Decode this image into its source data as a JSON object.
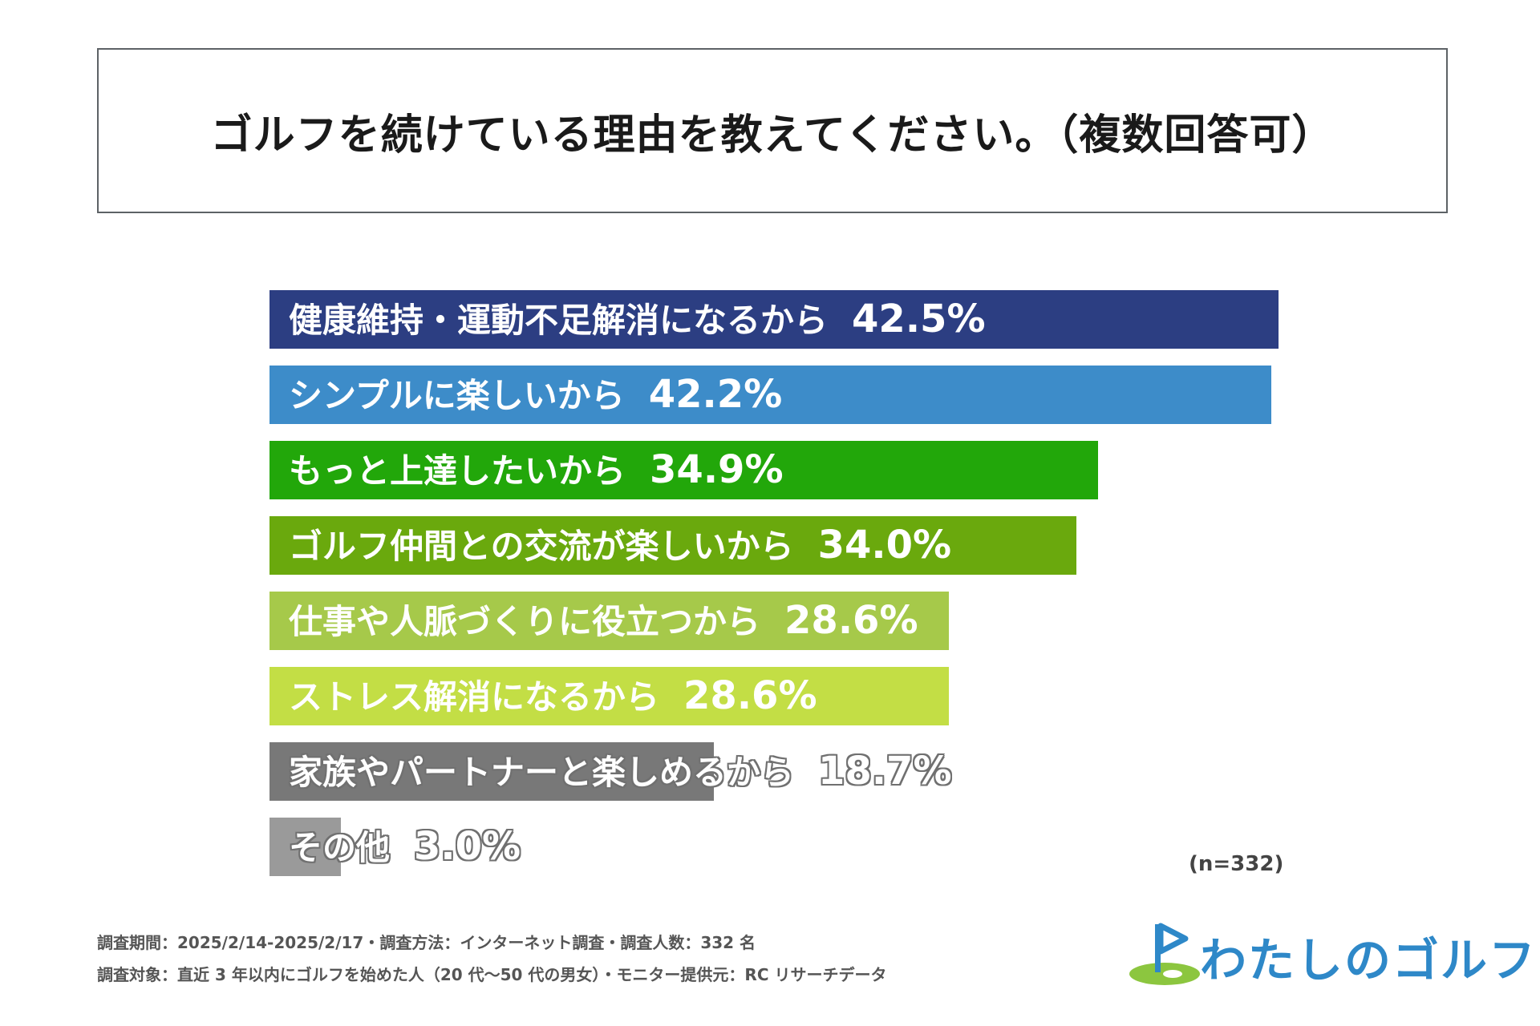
{
  "title": "ゴルフを続けている理由を教えてください。（複数回答可）",
  "chart_data": {
    "type": "bar",
    "orientation": "horizontal",
    "title": "ゴルフを続けている理由を教えてください。（複数回答可）",
    "unit": "%",
    "categories": [
      "健康維持・運動不足解消になるから",
      "シンプルに楽しいから",
      "もっと上達したいから",
      "ゴルフ仲間との交流が楽しいから",
      "仕事や人脈づくりに役立つから",
      "ストレス解消になるから",
      "家族やパートナーと楽しめるから",
      "その他"
    ],
    "values": [
      42.5,
      42.2,
      34.9,
      34.0,
      28.6,
      28.6,
      18.7,
      3.0
    ],
    "value_labels": [
      "42.5%",
      "42.2%",
      "34.9%",
      "34.0%",
      "28.6%",
      "28.6%",
      "18.7%",
      "3.0%"
    ],
    "colors": [
      "#2c3e82",
      "#3d8cc9",
      "#22a70a",
      "#6aa90d",
      "#a6c94a",
      "#c3de45",
      "#787878",
      "#9a9a9a"
    ],
    "xlim": [
      0,
      42.5
    ],
    "grid": false,
    "legend": "none"
  },
  "sample_note": "(n=332)",
  "footnotes": [
    "調査期間：2025/2/14-2025/2/17・調査方法：インターネット調査・調査人数：332 名",
    "調査対象：直近 3 年以内にゴルフを始めた人（20 代〜50 代の男女）・モニター提供元：RC リサーチデータ"
  ],
  "logo": {
    "text": "わたしのゴルフ",
    "colors": {
      "text": "#2e88c8",
      "green": "#8cc63f",
      "flag": "#2e88c8"
    }
  }
}
